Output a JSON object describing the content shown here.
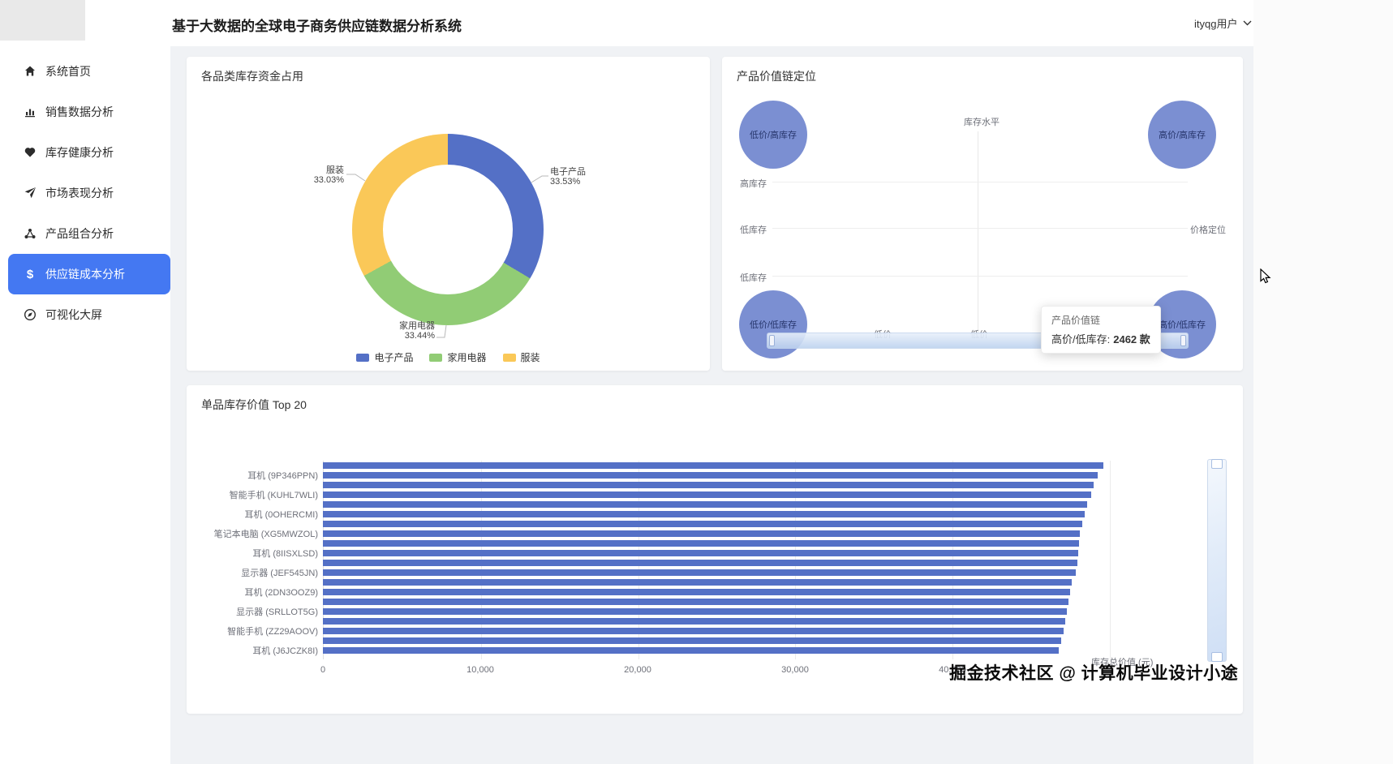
{
  "header": {
    "title": "基于大数据的全球电子商务供应链数据分析系统",
    "user": "ityqg用户"
  },
  "sidebar": {
    "items": [
      {
        "label": "系统首页",
        "icon": "home-icon",
        "active": false
      },
      {
        "label": "销售数据分析",
        "icon": "bar-chart-icon",
        "active": false
      },
      {
        "label": "库存健康分析",
        "icon": "heart-icon",
        "active": false
      },
      {
        "label": "市场表现分析",
        "icon": "rocket-icon",
        "active": false
      },
      {
        "label": "产品组合分析",
        "icon": "portfolio-icon",
        "active": false
      },
      {
        "label": "供应链成本分析",
        "icon": "dollar-icon",
        "active": true
      },
      {
        "label": "可视化大屏",
        "icon": "screen-icon",
        "active": false
      }
    ]
  },
  "watermark": "掘金技术社区 @ 计算机毕业设计小途",
  "chart_data": [
    {
      "type": "pie",
      "title": "各品类库存资金占用",
      "donut": true,
      "labels": [
        "电子产品",
        "家用电器",
        "服装"
      ],
      "values": [
        33.53,
        33.44,
        33.03
      ],
      "value_labels": [
        "33.53%",
        "33.44%",
        "33.03%"
      ],
      "colors": [
        "#5470c6",
        "#91cc75",
        "#fac858"
      ],
      "legend": [
        "电子产品",
        "家用电器",
        "服装"
      ],
      "legend_position": "bottom"
    },
    {
      "type": "scatter",
      "title": "产品价值链定位",
      "axis_top_label": "库存水平",
      "axis_right_label": "价格定位",
      "y_tick_labels": [
        "高库存",
        "低库存",
        "低库存"
      ],
      "x_tick_labels": [
        "低价",
        "低价"
      ],
      "bubble_color": "#7b8fd2",
      "points": [
        {
          "label": "低价/高库存",
          "quadrant": "top-left"
        },
        {
          "label": "高价/高库存",
          "quadrant": "top-right"
        },
        {
          "label": "低价/低库存",
          "quadrant": "bottom-left"
        },
        {
          "label": "高价/低库存",
          "quadrant": "bottom-right",
          "count": 2462
        }
      ],
      "tooltip": {
        "title": "产品价值链",
        "series": "高价/低库存:",
        "value": "2462 款"
      }
    },
    {
      "type": "bar",
      "title": "单品库存价值 Top 20",
      "orientation": "horizontal",
      "xlabel": "库存总价值 (元)",
      "x_ticks": [
        "0",
        "10,000",
        "20,000",
        "30,000",
        "40,000"
      ],
      "xlim": [
        0,
        50000
      ],
      "bar_color": "#5470c6",
      "items": [
        {
          "label": "",
          "value": 49600
        },
        {
          "label": "耳机 (9P346PPN)",
          "value": 49250
        },
        {
          "label": "",
          "value": 48950
        },
        {
          "label": "智能手机 (KUHL7WLI)",
          "value": 48800
        },
        {
          "label": "",
          "value": 48550
        },
        {
          "label": "耳机 (0OHERCMI)",
          "value": 48400
        },
        {
          "label": "",
          "value": 48250
        },
        {
          "label": "笔记本电脑 (XG5MWZOL)",
          "value": 48100
        },
        {
          "label": "",
          "value": 48050
        },
        {
          "label": "耳机 (8IISXLSD)",
          "value": 48000
        },
        {
          "label": "",
          "value": 47950
        },
        {
          "label": "显示器 (JEF545JN)",
          "value": 47850
        },
        {
          "label": "",
          "value": 47600
        },
        {
          "label": "耳机 (2DN3OOZ9)",
          "value": 47450
        },
        {
          "label": "",
          "value": 47350
        },
        {
          "label": "显示器 (SRLLOT5G)",
          "value": 47250
        },
        {
          "label": "",
          "value": 47150
        },
        {
          "label": "智能手机 (ZZ29AOOV)",
          "value": 47050
        },
        {
          "label": "",
          "value": 46900
        },
        {
          "label": "耳机 (J6JCZK8I)",
          "value": 46750
        }
      ]
    }
  ]
}
